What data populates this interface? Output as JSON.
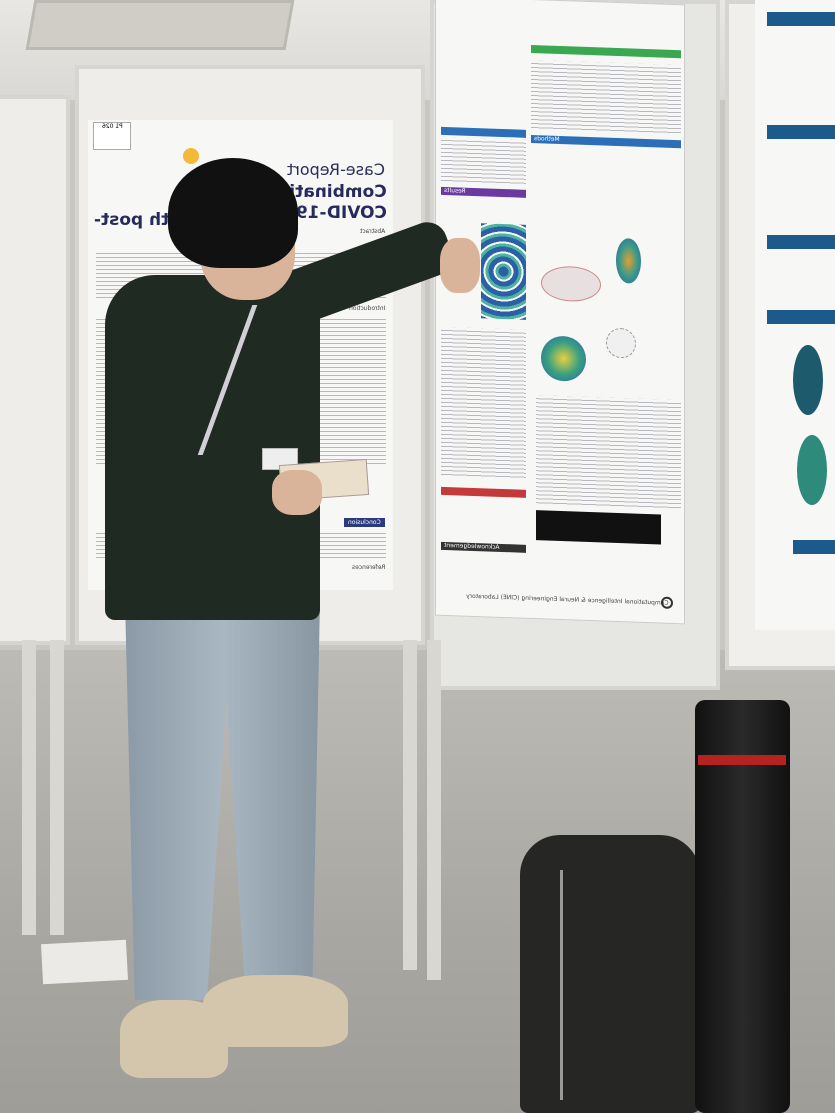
{
  "scene": {
    "description_free": true,
    "colors": {
      "sweater": "#1f2a22",
      "jeans": "#a9b7c2",
      "tube_band": "#b42222",
      "poster_title": "#262a5c"
    }
  },
  "poster_left": {
    "tag": "P1 026",
    "heading": "Case-Report",
    "title_line1": "Combination of T",
    "title_line2": "COVID-19 depres",
    "title_line3": "t with post-",
    "sections": [
      "Abstract",
      "Introduction",
      "Conclusion",
      "References"
    ]
  },
  "poster_right": {
    "footer_lab": "Computational Intelligence & Neural Engineering (CINE) Laboratory",
    "sections": [
      "Methods",
      "Results",
      "Conclusion",
      "Acknowledgement"
    ]
  }
}
